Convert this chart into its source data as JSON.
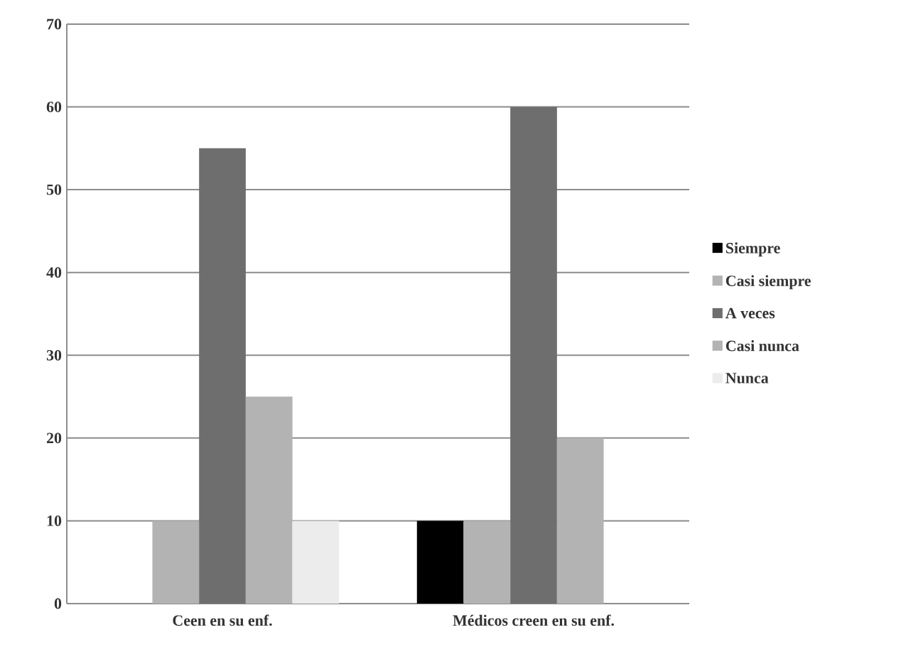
{
  "chart_data": {
    "type": "bar",
    "categories": [
      "Ceen en su enf.",
      "Médicos creen en su enf."
    ],
    "series": [
      {
        "name": "Siempre",
        "color": "#000000",
        "values": [
          0,
          10
        ]
      },
      {
        "name": "Casi siempre",
        "color": "#b3b3b3",
        "values": [
          10,
          10
        ]
      },
      {
        "name": "A veces",
        "color": "#6e6e6e",
        "values": [
          55,
          60
        ]
      },
      {
        "name": "Casi nunca",
        "color": "#b3b3b3",
        "values": [
          25,
          20
        ]
      },
      {
        "name": "Nunca",
        "color": "#ececec",
        "values": [
          10,
          0
        ]
      }
    ],
    "ylim": [
      0,
      70
    ],
    "yticks": [
      0,
      10,
      20,
      30,
      40,
      50,
      60,
      70
    ],
    "grid": "y",
    "legend": "right"
  }
}
